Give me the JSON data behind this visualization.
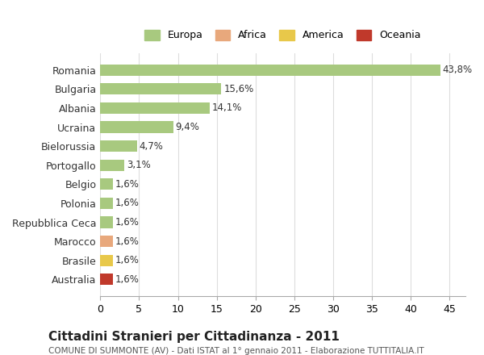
{
  "categories": [
    "Romania",
    "Bulgaria",
    "Albania",
    "Ucraina",
    "Bielorussia",
    "Portogallo",
    "Belgio",
    "Polonia",
    "Repubblica Ceca",
    "Marocco",
    "Brasile",
    "Australia"
  ],
  "values": [
    43.8,
    15.6,
    14.1,
    9.4,
    4.7,
    3.1,
    1.6,
    1.6,
    1.6,
    1.6,
    1.6,
    1.6
  ],
  "labels": [
    "43,8%",
    "15,6%",
    "14,1%",
    "9,4%",
    "4,7%",
    "3,1%",
    "1,6%",
    "1,6%",
    "1,6%",
    "1,6%",
    "1,6%",
    "1,6%"
  ],
  "bar_colors": [
    "#a8c97f",
    "#a8c97f",
    "#a8c97f",
    "#a8c97f",
    "#a8c97f",
    "#a8c97f",
    "#a8c97f",
    "#a8c97f",
    "#a8c97f",
    "#e8a87c",
    "#e8c84a",
    "#c0392b"
  ],
  "continent": [
    "Europa",
    "Europa",
    "Europa",
    "Europa",
    "Europa",
    "Europa",
    "Europa",
    "Europa",
    "Europa",
    "Africa",
    "America",
    "Oceania"
  ],
  "legend_labels": [
    "Europa",
    "Africa",
    "America",
    "Oceania"
  ],
  "legend_colors": [
    "#a8c97f",
    "#e8a87c",
    "#e8c84a",
    "#c0392b"
  ],
  "xlim": [
    0,
    47
  ],
  "xticks": [
    0,
    5,
    10,
    15,
    20,
    25,
    30,
    35,
    40,
    45
  ],
  "title": "Cittadini Stranieri per Cittadinanza - 2011",
  "subtitle": "COMUNE DI SUMMONTE (AV) - Dati ISTAT al 1° gennaio 2011 - Elaborazione TUTTITALIA.IT",
  "background_color": "#ffffff",
  "grid_color": "#dddddd",
  "bar_height": 0.6,
  "figsize": [
    6.0,
    4.4
  ],
  "dpi": 100
}
